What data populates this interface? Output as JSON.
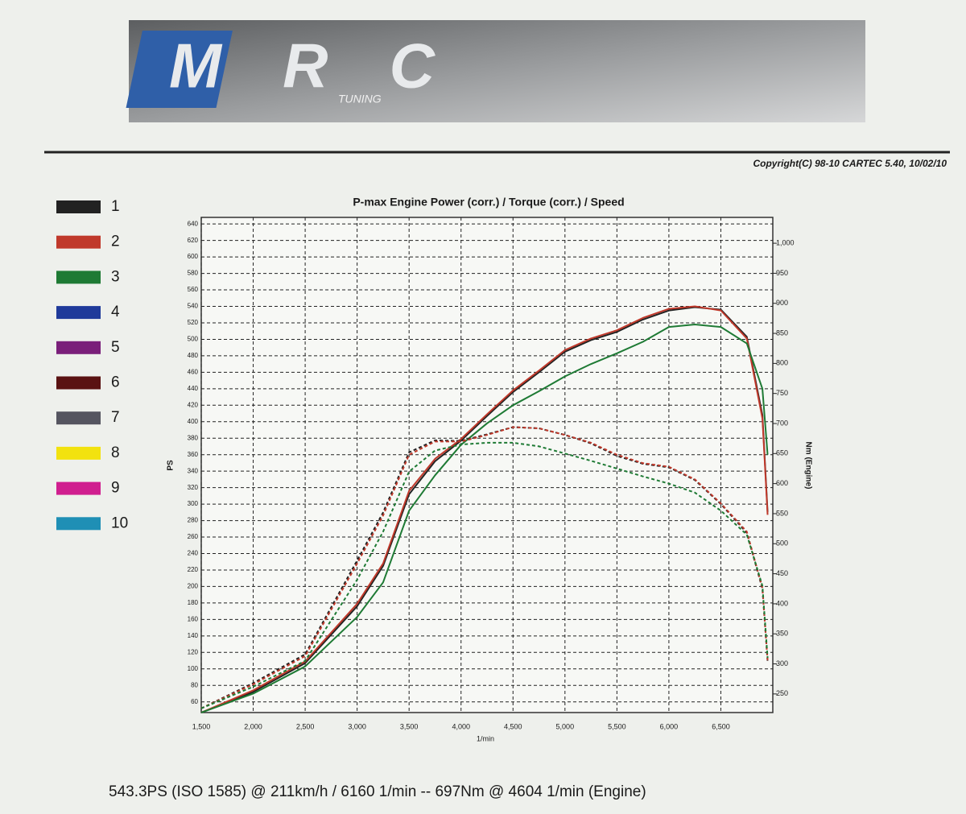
{
  "header": {
    "logo": "MRC",
    "logo_sub": "TUNING",
    "copyright": "Copyright(C) 98-10 CARTEC 5.40, 10/02/10"
  },
  "legend": [
    {
      "name": "1",
      "color": "#222222"
    },
    {
      "name": "2",
      "color": "#c0392b"
    },
    {
      "name": "3",
      "color": "#1e7a34"
    },
    {
      "name": "4",
      "color": "#1f3a9a"
    },
    {
      "name": "5",
      "color": "#7a1f7a"
    },
    {
      "name": "6",
      "color": "#5a1212"
    },
    {
      "name": "7",
      "color": "#555560"
    },
    {
      "name": "8",
      "color": "#f2e20f"
    },
    {
      "name": "9",
      "color": "#d01f8f"
    },
    {
      "name": "10",
      "color": "#1f8fb5"
    }
  ],
  "chart_data": {
    "type": "line",
    "title": "P-max Engine Power (corr.) / Torque (corr.) / Speed",
    "x_label": "1/min",
    "y_label": "PS",
    "y2_label": "Nm (Engine)",
    "x": [
      1500,
      2000,
      2500,
      3000,
      3250,
      3500,
      3750,
      4000,
      4250,
      4500,
      4750,
      5000,
      5250,
      5500,
      5750,
      6000,
      6250,
      6500,
      6750,
      6900,
      6950
    ],
    "series": [
      {
        "color": "#222222",
        "axis": "y",
        "dashed": false,
        "values": [
          47,
          72,
          107,
          176,
          225,
          312,
          352,
          377,
          407,
          436,
          460,
          485,
          499,
          509,
          524,
          535,
          539,
          536,
          503,
          408,
          290
        ]
      },
      {
        "color": "#c0392b",
        "axis": "y",
        "dashed": false,
        "values": [
          47,
          74,
          109,
          179,
          228,
          316,
          355,
          379,
          409,
          438,
          462,
          487,
          501,
          511,
          526,
          537,
          540,
          535,
          501,
          404,
          287
        ]
      },
      {
        "color": "#1e7a34",
        "axis": "y",
        "dashed": false,
        "values": [
          47,
          70,
          103,
          163,
          205,
          292,
          335,
          372,
          398,
          420,
          437,
          455,
          470,
          483,
          497,
          515,
          518,
          515,
          495,
          440,
          360
        ]
      },
      {
        "color": "#222222",
        "axis": "y2",
        "dashed": true,
        "values": [
          226,
          268,
          316,
          472,
          552,
          652,
          672,
          671,
          682,
          694,
          692,
          681,
          667,
          646,
          633,
          627,
          606,
          566,
          518,
          425,
          304
        ]
      },
      {
        "color": "#c0392b",
        "axis": "y2",
        "dashed": true,
        "values": [
          226,
          266,
          313,
          467,
          547,
          648,
          670,
          670,
          681,
          694,
          692,
          681,
          668,
          648,
          634,
          628,
          607,
          567,
          520,
          427,
          306
        ]
      },
      {
        "color": "#1e7a34",
        "axis": "y2",
        "dashed": true,
        "values": [
          226,
          262,
          305,
          440,
          520,
          620,
          655,
          665,
          668,
          668,
          662,
          650,
          638,
          625,
          612,
          600,
          585,
          555,
          515,
          430,
          310
        ]
      }
    ],
    "xlim": [
      1500,
      7000
    ],
    "xticks": [
      {
        "value": 1500,
        "label": "1,500"
      },
      {
        "value": 2000,
        "label": "2,000"
      },
      {
        "value": 2500,
        "label": "2,500"
      },
      {
        "value": 3000,
        "label": "3,000"
      },
      {
        "value": 3500,
        "label": "3,500"
      },
      {
        "value": 4000,
        "label": "4,000"
      },
      {
        "value": 4500,
        "label": "4,500"
      },
      {
        "value": 5000,
        "label": "5,000"
      },
      {
        "value": 5500,
        "label": "5,500"
      },
      {
        "value": 6000,
        "label": "6,000"
      },
      {
        "value": 6500,
        "label": "6,500"
      }
    ],
    "ylim": [
      47,
      648
    ],
    "yticks": [
      60,
      80,
      100,
      120,
      140,
      160,
      180,
      200,
      220,
      240,
      260,
      280,
      300,
      320,
      340,
      360,
      380,
      400,
      420,
      440,
      460,
      480,
      500,
      520,
      540,
      560,
      580,
      600,
      620,
      640
    ],
    "y2lim": [
      219,
      1043
    ],
    "y2ticks": [
      250,
      300,
      350,
      400,
      450,
      500,
      550,
      600,
      650,
      700,
      750,
      800,
      850,
      900,
      950,
      {
        "value": 1000,
        "label": "1,000"
      }
    ],
    "grid": true
  },
  "footer": "543.3PS (ISO 1585) @ 211km/h / 6160 1/min -- 697Nm @ 4604 1/min (Engine)"
}
